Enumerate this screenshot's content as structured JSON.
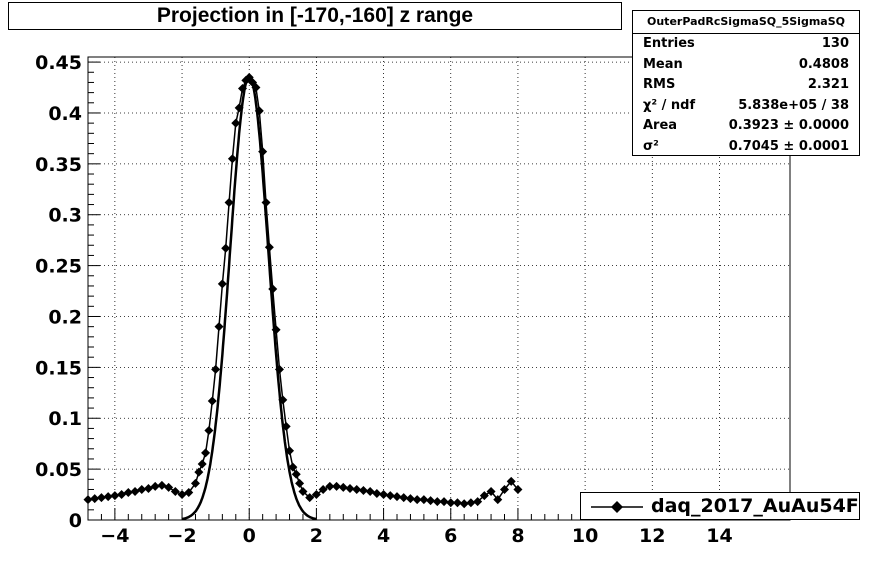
{
  "chart_data": {
    "type": "scatter",
    "title": "Projection in [-170,-160] z range",
    "xlabel": "",
    "ylabel": "",
    "xlim": [
      -4.8,
      16.1
    ],
    "ylim": [
      0,
      0.455
    ],
    "x_ticks": [
      -4,
      -2,
      0,
      2,
      4,
      6,
      8,
      10,
      12,
      14
    ],
    "x_tick_labels": [
      "−4",
      "−2",
      "0",
      "2",
      "4",
      "6",
      "8",
      "10",
      "12",
      "14"
    ],
    "y_ticks": [
      0,
      0.05,
      0.1,
      0.15,
      0.2,
      0.25,
      0.3,
      0.35,
      0.4,
      0.45
    ],
    "y_tick_labels": [
      "0",
      "0.05",
      "0.1",
      "0.15",
      "0.2",
      "0.25",
      "0.3",
      "0.35",
      "0.4",
      "0.45"
    ],
    "grid": true,
    "legend_position": "bottom-right",
    "series": [
      {
        "name": "daq_2017_AuAu54F",
        "style": "markers-line",
        "color": "#000000",
        "x": [
          -4.8,
          -4.6,
          -4.4,
          -4.2,
          -4.0,
          -3.8,
          -3.6,
          -3.4,
          -3.2,
          -3.0,
          -2.8,
          -2.6,
          -2.4,
          -2.2,
          -2.0,
          -1.8,
          -1.6,
          -1.5,
          -1.4,
          -1.3,
          -1.2,
          -1.1,
          -1.0,
          -0.9,
          -0.8,
          -0.7,
          -0.6,
          -0.5,
          -0.4,
          -0.3,
          -0.2,
          -0.1,
          0.0,
          0.1,
          0.2,
          0.3,
          0.4,
          0.5,
          0.6,
          0.7,
          0.8,
          0.9,
          1.0,
          1.1,
          1.2,
          1.3,
          1.4,
          1.5,
          1.6,
          1.8,
          2.0,
          2.2,
          2.4,
          2.6,
          2.8,
          3.0,
          3.2,
          3.4,
          3.6,
          3.8,
          4.0,
          4.2,
          4.4,
          4.6,
          4.8,
          5.0,
          5.2,
          5.4,
          5.6,
          5.8,
          6.0,
          6.2,
          6.4,
          6.6,
          6.8,
          7.0,
          7.2,
          7.4,
          7.6,
          7.8,
          8.0
        ],
        "y": [
          0.02,
          0.021,
          0.022,
          0.023,
          0.024,
          0.025,
          0.027,
          0.028,
          0.03,
          0.031,
          0.033,
          0.034,
          0.032,
          0.028,
          0.025,
          0.027,
          0.036,
          0.047,
          0.055,
          0.066,
          0.088,
          0.117,
          0.148,
          0.19,
          0.232,
          0.267,
          0.312,
          0.355,
          0.39,
          0.405,
          0.424,
          0.432,
          0.435,
          0.43,
          0.425,
          0.402,
          0.362,
          0.312,
          0.268,
          0.227,
          0.187,
          0.148,
          0.118,
          0.092,
          0.068,
          0.052,
          0.045,
          0.036,
          0.028,
          0.022,
          0.025,
          0.03,
          0.033,
          0.033,
          0.032,
          0.031,
          0.03,
          0.029,
          0.028,
          0.026,
          0.025,
          0.024,
          0.023,
          0.022,
          0.021,
          0.02,
          0.02,
          0.019,
          0.018,
          0.018,
          0.017,
          0.017,
          0.016,
          0.017,
          0.018,
          0.024,
          0.028,
          0.02,
          0.03,
          0.038,
          0.03
        ]
      }
    ],
    "fit": {
      "type": "gaussian",
      "mean": 0.0,
      "sigma": 0.57,
      "amplitude": 0.436,
      "xrange": [
        -2.0,
        2.0
      ]
    }
  },
  "stats": {
    "name": "OuterPadRcSigmaSQ_5SigmaSQ",
    "rows": [
      {
        "key": "Entries",
        "value": "130"
      },
      {
        "key": "Mean",
        "value": "0.4808"
      },
      {
        "key": "RMS",
        "value": "2.321"
      },
      {
        "key": "χ² / ndf",
        "value": "5.838e+05 / 38"
      },
      {
        "key": "Area",
        "value": "0.3923 ± 0.0000"
      },
      {
        "key": "σ²",
        "value": "0.7045 ± 0.0001"
      }
    ]
  },
  "legend": {
    "label": "daq_2017_AuAu54F"
  }
}
